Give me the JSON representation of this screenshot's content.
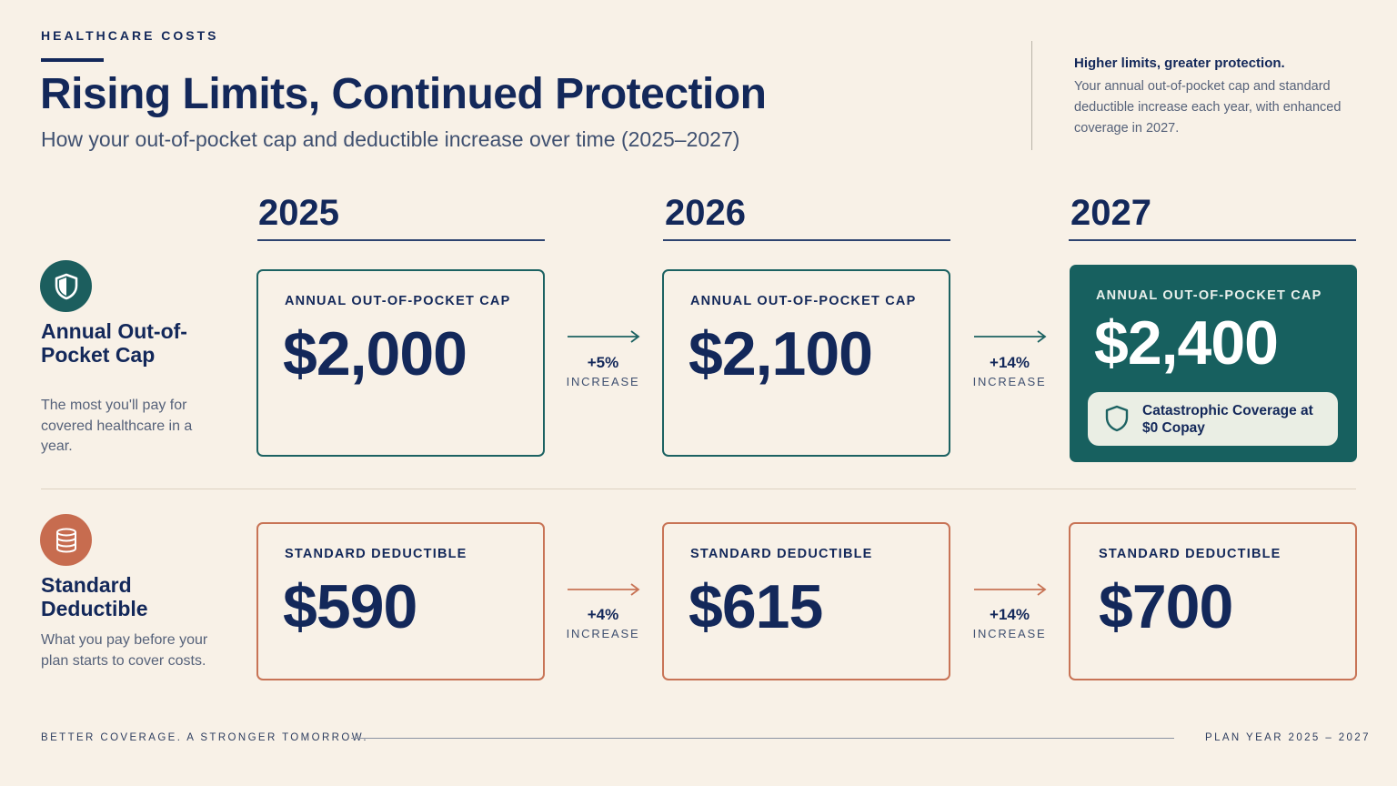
{
  "header": {
    "eyebrow": "HEALTHCARE COSTS",
    "title": "Rising Limits, Continued Protection",
    "subtitle": "How your out-of-pocket cap and deductible increase over time (2025–2027)"
  },
  "note": {
    "heading": "Higher limits, greater protection.",
    "body": "Your annual out-of-pocket cap and standard deductible increase each year, with enhanced coverage in 2027."
  },
  "years": [
    "2025",
    "2026",
    "2027"
  ],
  "rows": {
    "oop": {
      "icon": "shield-icon",
      "title": "Annual Out-of-Pocket Cap",
      "description": "The most you'll pay for covered healthcare in a year.",
      "card_label": "ANNUAL OUT-OF-POCKET CAP",
      "values": [
        "$2,000",
        "$2,100",
        "$2,400"
      ],
      "changes": [
        {
          "pct": "+5%",
          "label": "INCREASE"
        },
        {
          "pct": "+14%",
          "label": "INCREASE"
        }
      ],
      "badge": "Catastrophic Coverage at $0 Copay",
      "accent": "#1c6262"
    },
    "deductible": {
      "icon": "coins-stack-icon",
      "title": "Standard Deductible",
      "description": "What you pay before your plan starts to cover costs.",
      "card_label": "STANDARD DEDUCTIBLE",
      "values": [
        "$590",
        "$615",
        "$700"
      ],
      "changes": [
        {
          "pct": "+4%",
          "label": "INCREASE"
        },
        {
          "pct": "+14%",
          "label": "INCREASE"
        }
      ],
      "accent": "#c87456"
    }
  },
  "footer": {
    "left": "BETTER COVERAGE. A STRONGER TOMORROW.",
    "right": "PLAN YEAR 2025 – 2027"
  }
}
